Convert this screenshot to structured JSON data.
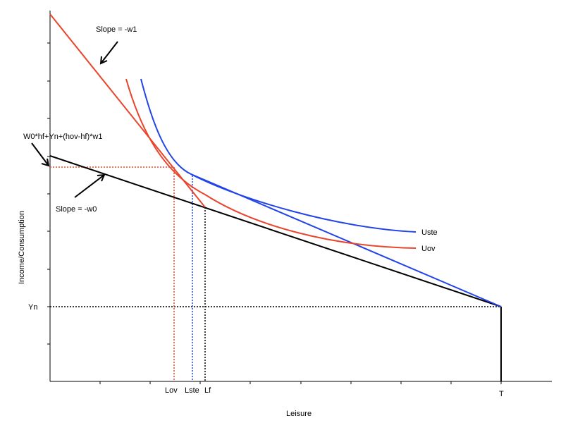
{
  "axes": {
    "xlabel": "Leisure",
    "ylabel": "Income/Consumption"
  },
  "x_labels": {
    "lov": "Lov",
    "lste": "Lste",
    "lf": "Lf",
    "t": "T"
  },
  "y_labels": {
    "yn": "Yn",
    "w0hf": "W0*hf+Yn+(hov-hf)*w1"
  },
  "annotations": {
    "slope_w1": "Slope = -w1",
    "slope_w0": "Slope = -w0"
  },
  "curves": {
    "uste": "Uste",
    "uov": "Uov"
  },
  "colors": {
    "red": "#e8452c",
    "blue": "#2244e8",
    "black": "#000000",
    "axis": "#000000"
  }
}
